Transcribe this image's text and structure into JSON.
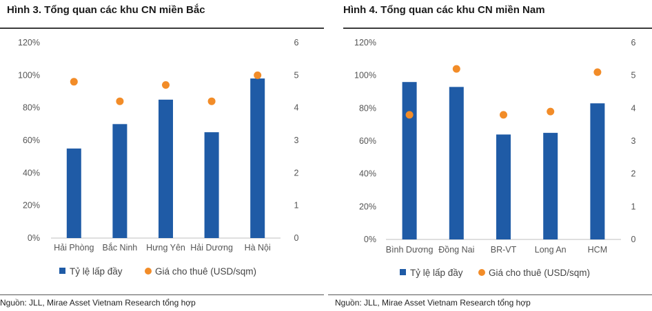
{
  "chart_data": [
    {
      "type": "bar",
      "title": "Hình 3. Tổng quan các khu CN miền Bắc",
      "source": "Nguồn: JLL, Mirae Asset Vietnam Research tổng hợp",
      "categories": [
        "Hải Phòng",
        "Bắc Ninh",
        "Hưng Yên",
        "Hải Dương",
        "Hà Nội"
      ],
      "series": [
        {
          "name": "Tỷ lệ lấp đầy",
          "kind": "bar",
          "axis": "left",
          "values": [
            0.55,
            0.7,
            0.85,
            0.65,
            0.98
          ],
          "color": "#1f5ba6"
        },
        {
          "name": "Giá cho thuê (USD/sqm)",
          "kind": "scatter",
          "axis": "right",
          "values": [
            4.8,
            4.2,
            4.7,
            4.2,
            5.0
          ],
          "color": "#f28c28"
        }
      ],
      "left_axis": {
        "ticks": [
          "0%",
          "20%",
          "40%",
          "60%",
          "80%",
          "100%",
          "120%"
        ],
        "ylim": [
          0,
          1.2
        ]
      },
      "right_axis": {
        "ticks": [
          "0",
          "1",
          "2",
          "3",
          "4",
          "5",
          "6"
        ],
        "ylim": [
          0,
          6
        ]
      },
      "grid": false,
      "legend": "bottom"
    },
    {
      "type": "bar",
      "title": "Hình 4. Tổng quan các khu CN miền Nam",
      "source": "Nguồn: JLL, Mirae Asset Vietnam Research tổng hợp",
      "categories": [
        "Bình Dương",
        "Đồng Nai",
        "BR-VT",
        "Long An",
        "HCM"
      ],
      "series": [
        {
          "name": "Tỷ lệ lấp đầy",
          "kind": "bar",
          "axis": "left",
          "values": [
            0.96,
            0.93,
            0.64,
            0.65,
            0.83
          ],
          "color": "#1f5ba6"
        },
        {
          "name": "Giá cho thuê (USD/sqm)",
          "kind": "scatter",
          "axis": "right",
          "values": [
            3.8,
            5.2,
            3.8,
            3.9,
            5.1
          ],
          "color": "#f28c28"
        }
      ],
      "left_axis": {
        "ticks": [
          "0%",
          "20%",
          "40%",
          "60%",
          "80%",
          "100%",
          "120%"
        ],
        "ylim": [
          0,
          1.2
        ]
      },
      "right_axis": {
        "ticks": [
          "0",
          "1",
          "2",
          "3",
          "4",
          "5",
          "6"
        ],
        "ylim": [
          0,
          6
        ]
      },
      "grid": false,
      "legend": "bottom"
    }
  ]
}
